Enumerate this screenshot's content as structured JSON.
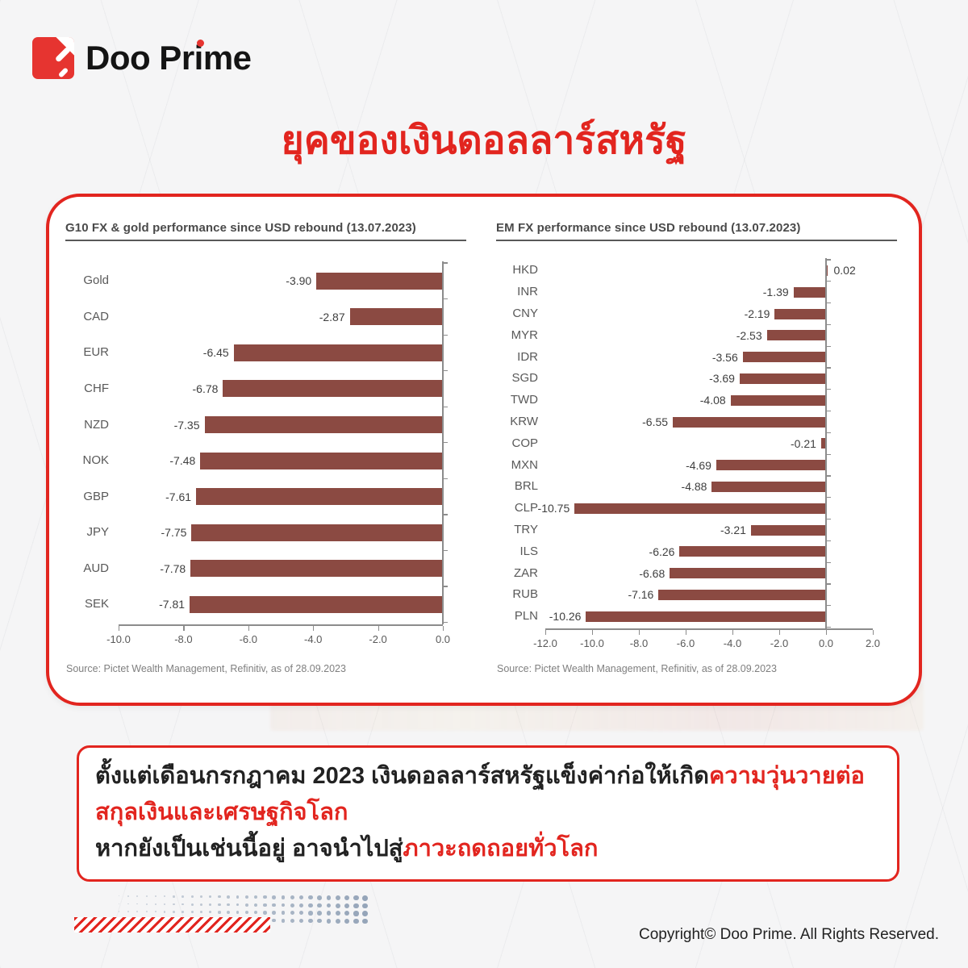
{
  "brand": {
    "logo_text": "Doo Prime"
  },
  "title": "ยุคของเงินดอลลาร์สหรัฐ",
  "colors": {
    "brand_red": "#E2251F",
    "logo_red": "#E63430",
    "bar_color": "#8B4A42",
    "chart_ink": "#4A4A4A",
    "dot_blue": "#8FA0B5"
  },
  "chart_data": [
    {
      "type": "bar",
      "orientation": "horizontal",
      "title": "G10 FX & gold performance since USD rebound (13.07.2023)",
      "categories": [
        "Gold",
        "CAD",
        "EUR",
        "CHF",
        "NZD",
        "NOK",
        "GBP",
        "JPY",
        "AUD",
        "SEK"
      ],
      "values": [
        -3.9,
        -2.87,
        -6.45,
        -6.78,
        -7.35,
        -7.48,
        -7.61,
        -7.75,
        -7.78,
        -7.81
      ],
      "xlim": [
        -10,
        0
      ],
      "xticks": [
        -10,
        -8,
        -6,
        -4,
        -2,
        0
      ],
      "grid": false,
      "legend": false,
      "bar_color": "#8B4A42",
      "source": "Source: Pictet Wealth Management, Refinitiv, as of 28.09.2023"
    },
    {
      "type": "bar",
      "orientation": "horizontal",
      "title": "EM FX performance since USD rebound (13.07.2023)",
      "categories": [
        "HKD",
        "INR",
        "CNY",
        "MYR",
        "IDR",
        "SGD",
        "TWD",
        "KRW",
        "COP",
        "MXN",
        "BRL",
        "CLP",
        "TRY",
        "ILS",
        "ZAR",
        "RUB",
        "PLN"
      ],
      "values": [
        0.02,
        -1.39,
        -2.19,
        -2.53,
        -3.56,
        -3.69,
        -4.08,
        -6.55,
        -0.21,
        -4.69,
        -4.88,
        -10.75,
        -3.21,
        -6.26,
        -6.68,
        -7.16,
        -10.26
      ],
      "xlim": [
        -12,
        2
      ],
      "xticks": [
        -12,
        -10,
        -8,
        -6,
        -4,
        -2,
        0,
        2
      ],
      "grid": false,
      "legend": false,
      "bar_color": "#8B4A42",
      "source": "Source: Pictet Wealth Management, Refinitiv, as of 28.09.2023"
    }
  ],
  "summary": {
    "l1_black": "ตั้งแต่เดือนกรกฎาคม 2023 เงินดอลลาร์สหรัฐแข็งค่าก่อให้เกิด",
    "l1_red": "ความวุ่นวายต่อ",
    "l2_red": "สกุลเงินและเศรษฐกิจโลก",
    "l3_black": "หากยังเป็นเช่นนี้อยู่ อาจนำไปสู่",
    "l3_red": "ภาวะถดถอยทั่วโลก"
  },
  "footer": {
    "copyright": "Copyright© Doo Prime. All Rights Reserved."
  }
}
